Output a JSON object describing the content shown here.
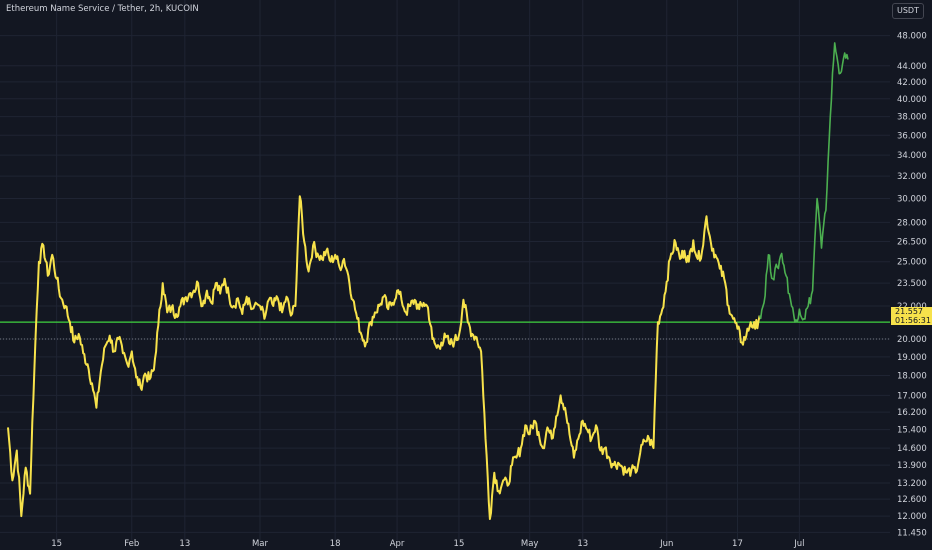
{
  "header": {
    "title": "Ethereum Name Service / Tether, 2h, KUCOIN",
    "currency": "USDT"
  },
  "price_badge": {
    "price": "21.557",
    "countdown": "01:56:31"
  },
  "colors": {
    "background": "#131722",
    "price_line": "#f7e24b",
    "extension_line": "#4caf50",
    "support_line": "#3fd13f",
    "axis_text": "#d1d4dc"
  },
  "chart_data": {
    "type": "line",
    "y_scale": "log",
    "ylim": [
      11.2,
      50.5
    ],
    "y_ticks": [
      "48.000",
      "44.000",
      "42.000",
      "40.000",
      "38.000",
      "36.000",
      "34.000",
      "32.000",
      "30.000",
      "28.000",
      "26.500",
      "25.000",
      "23.500",
      "22.000",
      "21.000",
      "20.000",
      "19.000",
      "18.000",
      "17.000",
      "16.200",
      "15.400",
      "14.600",
      "13.900",
      "13.200",
      "12.600",
      "12.000",
      "11.450"
    ],
    "x_ticks": [
      "15",
      "Feb",
      "13",
      "Mar",
      "18",
      "Apr",
      "15",
      "May",
      "13",
      "Jun",
      "17",
      "Jul"
    ],
    "support_level": 21.0,
    "dotted_level": 20.0,
    "series": [
      {
        "points": [
          [
            "Jan 04",
            15.5
          ],
          [
            "Jan 05",
            13.3
          ],
          [
            "Jan 06",
            14.5
          ],
          [
            "Jan 07",
            12.0
          ],
          [
            "Jan 08",
            13.8
          ],
          [
            "Jan 09",
            12.8
          ],
          [
            "Jan 10",
            18.5
          ],
          [
            "Jan 11",
            25.0
          ],
          [
            "Jan 12",
            26.2
          ],
          [
            "Jan 13",
            24.0
          ],
          [
            "Jan 14",
            25.5
          ],
          [
            "Jan 15",
            23.8
          ],
          [
            "Jan 16",
            22.5
          ],
          [
            "Jan 17",
            22.0
          ],
          [
            "Jan 18",
            21.0
          ],
          [
            "Jan 19",
            19.8
          ],
          [
            "Jan 20",
            20.3
          ],
          [
            "Jan 21",
            19.2
          ],
          [
            "Jan 22",
            18.6
          ],
          [
            "Jan 23",
            17.6
          ],
          [
            "Jan 24",
            16.4
          ],
          [
            "Jan 25",
            18.2
          ],
          [
            "Jan 26",
            19.6
          ],
          [
            "Jan 27",
            20.2
          ],
          [
            "Jan 28",
            19.3
          ],
          [
            "Jan 29",
            20.0
          ],
          [
            "Jan 30",
            19.2
          ],
          [
            "Jan 31",
            18.6
          ],
          [
            "Feb 01",
            19.3
          ],
          [
            "Feb 02",
            17.9
          ],
          [
            "Feb 03",
            17.4
          ],
          [
            "Feb 04",
            18.1
          ],
          [
            "Feb 05",
            17.8
          ],
          [
            "Feb 06",
            18.3
          ],
          [
            "Feb 07",
            20.8
          ],
          [
            "Feb 08",
            23.5
          ],
          [
            "Feb 09",
            21.6
          ],
          [
            "Feb 10",
            21.9
          ],
          [
            "Feb 11",
            21.5
          ],
          [
            "Feb 12",
            22.0
          ],
          [
            "Feb 13",
            22.5
          ],
          [
            "Feb 14",
            22.8
          ],
          [
            "Feb 15",
            23.0
          ],
          [
            "Feb 16",
            23.5
          ],
          [
            "Feb 17",
            22.0
          ],
          [
            "Feb 18",
            23.0
          ],
          [
            "Feb 19",
            22.2
          ],
          [
            "Feb 20",
            23.5
          ],
          [
            "Feb 21",
            22.8
          ],
          [
            "Feb 22",
            23.8
          ],
          [
            "Feb 23",
            22.6
          ],
          [
            "Feb 24",
            22.0
          ],
          [
            "Feb 25",
            22.5
          ],
          [
            "Feb 26",
            21.5
          ],
          [
            "Feb 27",
            22.6
          ],
          [
            "Feb 28",
            21.8
          ],
          [
            "Mar 01",
            22.0
          ],
          [
            "Mar 02",
            21.2
          ],
          [
            "Mar 03",
            22.4
          ],
          [
            "Mar 04",
            22.0
          ],
          [
            "Mar 05",
            22.5
          ],
          [
            "Mar 06",
            21.6
          ],
          [
            "Mar 07",
            22.6
          ],
          [
            "Mar 08",
            21.4
          ],
          [
            "Mar 09",
            22.0
          ],
          [
            "Mar 10",
            30.2
          ],
          [
            "Mar 11",
            26.5
          ],
          [
            "Mar 12",
            24.3
          ],
          [
            "Mar 13",
            26.2
          ],
          [
            "Mar 14",
            25.6
          ],
          [
            "Mar 15",
            25.2
          ],
          [
            "Mar 16",
            25.8
          ],
          [
            "Mar 17",
            25.0
          ],
          [
            "Mar 18",
            25.5
          ],
          [
            "Mar 19",
            24.6
          ],
          [
            "Mar 20",
            25.2
          ],
          [
            "Mar 21",
            24.0
          ],
          [
            "Mar 22",
            22.4
          ],
          [
            "Mar 23",
            21.2
          ],
          [
            "Mar 24",
            20.2
          ],
          [
            "Mar 25",
            19.8
          ],
          [
            "Mar 26",
            21.0
          ],
          [
            "Mar 27",
            21.6
          ],
          [
            "Mar 28",
            22.0
          ],
          [
            "Mar 29",
            22.6
          ],
          [
            "Mar 30",
            21.8
          ],
          [
            "Mar 31",
            22.2
          ],
          [
            "Apr 01",
            23.0
          ],
          [
            "Apr 02",
            22.4
          ],
          [
            "Apr 03",
            21.6
          ],
          [
            "Apr 04",
            22.0
          ],
          [
            "Apr 05",
            22.4
          ],
          [
            "Apr 06",
            21.8
          ],
          [
            "Apr 07",
            22.2
          ],
          [
            "Apr 08",
            21.9
          ],
          [
            "Apr 09",
            20.0
          ],
          [
            "Apr 10",
            19.5
          ],
          [
            "Apr 11",
            19.8
          ],
          [
            "Apr 12",
            20.1
          ],
          [
            "Apr 13",
            19.7
          ],
          [
            "Apr 14",
            19.9
          ],
          [
            "Apr 15",
            20.2
          ],
          [
            "Apr 16",
            22.4
          ],
          [
            "Apr 17",
            21.0
          ],
          [
            "Apr 18",
            20.3
          ],
          [
            "Apr 19",
            20.1
          ],
          [
            "Apr 20",
            19.3
          ],
          [
            "Apr 21",
            15.0
          ],
          [
            "Apr 22",
            11.9
          ],
          [
            "Apr 23",
            13.6
          ],
          [
            "Apr 24",
            12.9
          ],
          [
            "Apr 25",
            13.3
          ],
          [
            "Apr 26",
            13.1
          ],
          [
            "Apr 27",
            13.9
          ],
          [
            "Apr 28",
            14.2
          ],
          [
            "Apr 29",
            14.6
          ],
          [
            "Apr 30",
            15.6
          ],
          [
            "May 01",
            15.2
          ],
          [
            "May 02",
            15.8
          ],
          [
            "May 03",
            15.3
          ],
          [
            "May 04",
            14.6
          ],
          [
            "May 05",
            15.5
          ],
          [
            "May 06",
            15.0
          ],
          [
            "May 07",
            16.0
          ],
          [
            "May 08",
            17.0
          ],
          [
            "May 09",
            16.4
          ],
          [
            "May 10",
            15.2
          ],
          [
            "May 11",
            14.2
          ],
          [
            "May 12",
            15.0
          ],
          [
            "May 13",
            15.8
          ],
          [
            "May 14",
            15.4
          ],
          [
            "May 15",
            15.0
          ],
          [
            "May 16",
            15.6
          ],
          [
            "May 17",
            14.5
          ],
          [
            "May 18",
            14.6
          ],
          [
            "May 19",
            14.2
          ],
          [
            "May 20",
            13.9
          ],
          [
            "May 21",
            14.0
          ],
          [
            "May 22",
            13.8
          ],
          [
            "May 23",
            13.6
          ],
          [
            "May 24",
            13.7
          ],
          [
            "May 25",
            13.6
          ],
          [
            "May 26",
            14.4
          ],
          [
            "May 27",
            14.9
          ],
          [
            "May 28",
            15.0
          ],
          [
            "May 29",
            14.6
          ],
          [
            "May 30",
            21.0
          ],
          [
            "May 31",
            21.8
          ],
          [
            "Jun 01",
            23.6
          ],
          [
            "Jun 02",
            25.6
          ],
          [
            "Jun 03",
            26.4
          ],
          [
            "Jun 04",
            25.2
          ],
          [
            "Jun 05",
            25.8
          ],
          [
            "Jun 06",
            25.0
          ],
          [
            "Jun 07",
            26.6
          ],
          [
            "Jun 08",
            25.2
          ],
          [
            "Jun 09",
            25.8
          ],
          [
            "Jun 10",
            28.5
          ],
          [
            "Jun 11",
            26.4
          ],
          [
            "Jun 12",
            25.5
          ],
          [
            "Jun 13",
            24.5
          ],
          [
            "Jun 14",
            23.8
          ],
          [
            "Jun 15",
            22.0
          ],
          [
            "Jun 16",
            21.2
          ],
          [
            "Jun 17",
            20.6
          ],
          [
            "Jun 18",
            19.8
          ],
          [
            "Jun 19",
            20.2
          ],
          [
            "Jun 20",
            21.0
          ],
          [
            "Jun 21",
            20.6
          ],
          [
            "Jun 22",
            21.4
          ]
        ]
      },
      {
        "points": [
          [
            "Jun 22",
            21.4
          ],
          [
            "Jun 23",
            22.2
          ],
          [
            "Jun 24",
            25.5
          ],
          [
            "Jun 25",
            23.8
          ],
          [
            "Jun 26",
            24.6
          ],
          [
            "Jun 27",
            25.6
          ],
          [
            "Jun 28",
            24.0
          ],
          [
            "Jun 29",
            22.4
          ],
          [
            "Jun 30",
            21.0
          ],
          [
            "Jul 01",
            21.8
          ],
          [
            "Jul 02",
            21.2
          ],
          [
            "Jul 03",
            22.0
          ],
          [
            "Jul 04",
            23.0
          ],
          [
            "Jul 05",
            30.0
          ],
          [
            "Jul 06",
            26.0
          ],
          [
            "Jul 07",
            29.0
          ],
          [
            "Jul 08",
            38.0
          ],
          [
            "Jul 09",
            47.0
          ],
          [
            "Jul 10",
            43.0
          ],
          [
            "Jul 11",
            45.0
          ],
          [
            "Jul 12",
            44.8
          ]
        ]
      }
    ]
  }
}
